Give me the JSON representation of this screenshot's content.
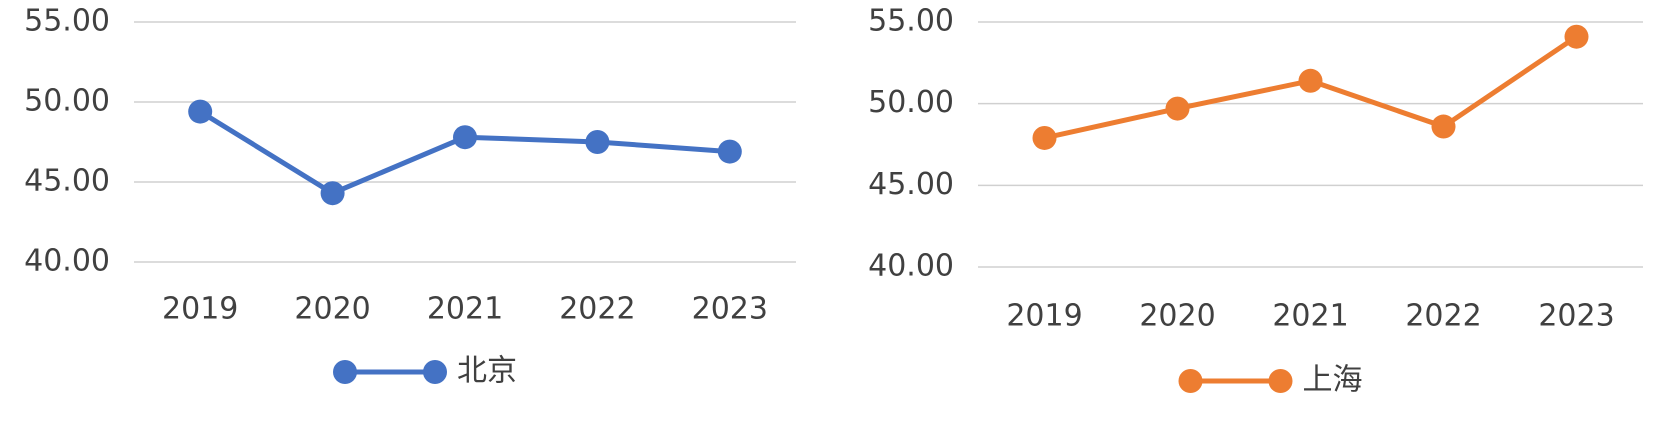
{
  "chart_data": [
    {
      "type": "line",
      "categories": [
        "2019",
        "2020",
        "2021",
        "2022",
        "2023"
      ],
      "series": [
        {
          "name": "北京",
          "color": "#4472c4",
          "values": [
            49.4,
            44.3,
            47.8,
            47.5,
            46.9
          ]
        }
      ],
      "ylim": [
        40,
        55
      ],
      "yticks": [
        {
          "value": 40,
          "label": "40.00"
        },
        {
          "value": 45,
          "label": "45.00"
        },
        {
          "value": 50,
          "label": "50.00"
        },
        {
          "value": 55,
          "label": "55.00"
        }
      ],
      "grid": true,
      "legend": "bottom"
    },
    {
      "type": "line",
      "categories": [
        "2019",
        "2020",
        "2021",
        "2022",
        "2023"
      ],
      "series": [
        {
          "name": "上海",
          "color": "#ed7d31",
          "values": [
            47.9,
            49.7,
            51.4,
            48.6,
            54.1
          ]
        }
      ],
      "ylim": [
        40,
        55
      ],
      "yticks": [
        {
          "value": 40,
          "label": "40.00"
        },
        {
          "value": 45,
          "label": "45.00"
        },
        {
          "value": 50,
          "label": "50.00"
        },
        {
          "value": 55,
          "label": "55.00"
        }
      ],
      "grid": true,
      "legend": "bottom"
    }
  ]
}
